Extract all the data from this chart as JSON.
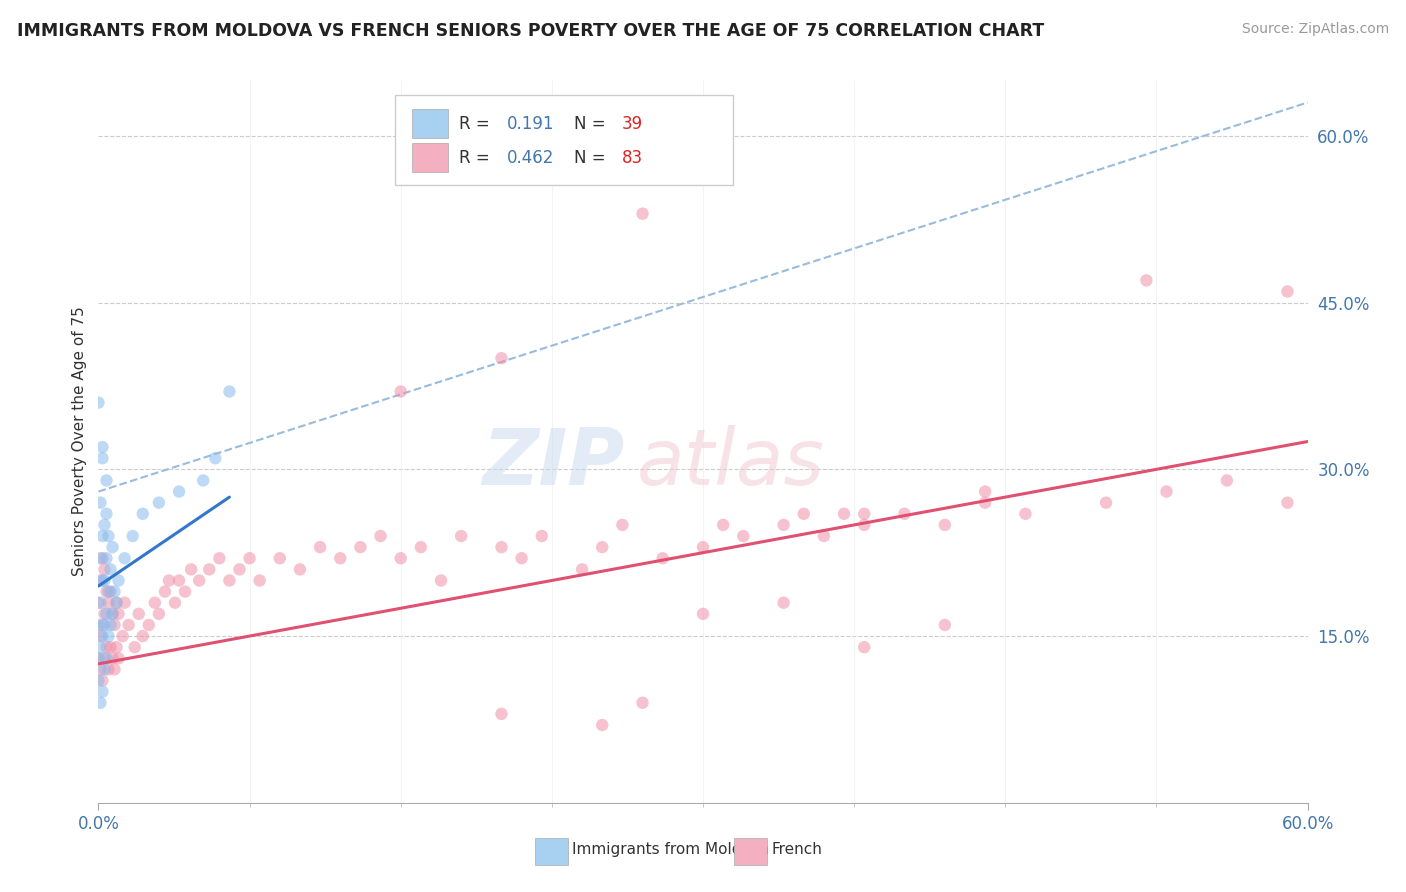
{
  "title": "IMMIGRANTS FROM MOLDOVA VS FRENCH SENIORS POVERTY OVER THE AGE OF 75 CORRELATION CHART",
  "source": "Source: ZipAtlas.com",
  "ylabel": "Seniors Poverty Over the Age of 75",
  "xlim": [
    0.0,
    0.6
  ],
  "ylim": [
    0.0,
    0.65
  ],
  "legend_R_moldova": "0.191",
  "legend_N_moldova": "39",
  "legend_R_french": "0.462",
  "legend_N_french": "83",
  "moldova_patch_color": "#A8D0F0",
  "french_patch_color": "#F4B0C0",
  "moldova_scatter_color": "#88BBEE",
  "french_scatter_color": "#F090A8",
  "trendline_moldova_color": "#3377CC",
  "trendline_french_color": "#E05070",
  "trendline_dashed_color": "#99BBDD",
  "grid_color": "#CCCCCC",
  "background_color": "#FFFFFF",
  "title_color": "#222222",
  "source_color": "#999999",
  "axis_label_color": "#333333",
  "tick_color": "#4477AA",
  "legend_text_color": "#333333",
  "legend_R_color": "#4477AA",
  "legend_N_color": "#DD2222"
}
